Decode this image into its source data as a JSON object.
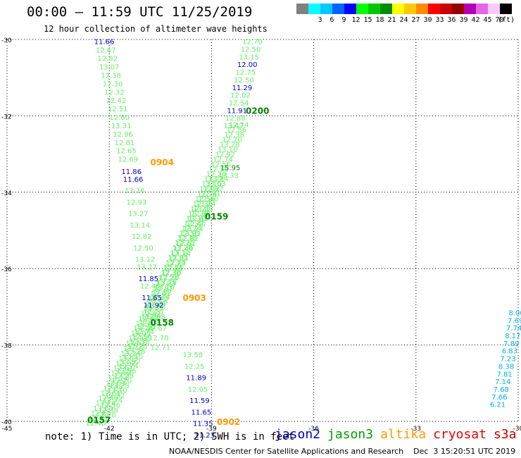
{
  "header": {
    "title": "00:00 – 11:59 UTC 11/25/2019",
    "subtitle": "12 hour collection of altimeter wave heights"
  },
  "legend": {
    "unit": "(ft)",
    "bins": [
      {
        "label": "",
        "color": "#808080"
      },
      {
        "label": "3",
        "color": "#00ffff"
      },
      {
        "label": "6",
        "color": "#00c8ff"
      },
      {
        "label": "9",
        "color": "#0064ff"
      },
      {
        "label": "12",
        "color": "#0000ff"
      },
      {
        "label": "15",
        "color": "#00ff00"
      },
      {
        "label": "18",
        "color": "#00c800"
      },
      {
        "label": "21",
        "color": "#008c00"
      },
      {
        "label": "24",
        "color": "#ffff00"
      },
      {
        "label": "27",
        "color": "#ffc800"
      },
      {
        "label": "30",
        "color": "#ff8c00"
      },
      {
        "label": "33",
        "color": "#ff0000"
      },
      {
        "label": "36",
        "color": "#c80000"
      },
      {
        "label": "39",
        "color": "#960000"
      },
      {
        "label": "42",
        "color": "#b400b4"
      },
      {
        "label": "45",
        "color": "#e664e6"
      },
      {
        "label": "70",
        "color": "#ffc8ff"
      },
      {
        "label": "",
        "color": "#000000"
      }
    ]
  },
  "footer": {
    "note": "note: 1) Time is in UTC; 2) SWH is in feet",
    "satellites": [
      {
        "name": "jason2",
        "color": "#0000c8"
      },
      {
        "name": "jason3",
        "color": "#00a000"
      },
      {
        "name": "altika",
        "color": "#ff9900"
      },
      {
        "name": "cryosat",
        "color": "#e00000"
      },
      {
        "name": "s3a",
        "color": "#c80000"
      }
    ],
    "credit": "NOAA/NESDIS Center for Satellite Applications and Research    Dec  3 15:20:51 UTC 2019"
  },
  "colors": {
    "swh_low": "#0000c8",
    "swh_mid": "#66ee66",
    "swh_s3a": "#00b0e0",
    "time_jason3": "#008800",
    "time_altika": "#ff9900"
  },
  "chart_data": {
    "type": "scatter",
    "title": "00:00 – 11:59 UTC 11/25/2019",
    "xlabel": "",
    "ylabel": "",
    "xlim": [
      -45,
      -30
    ],
    "ylim": [
      -40,
      -30
    ],
    "x_ticks": [
      -45,
      -42,
      -39,
      -36,
      -33,
      -30
    ],
    "y_ticks": [
      -30,
      -32,
      -34,
      -36,
      -38,
      -40
    ],
    "grid": "dotted",
    "tracks": [
      {
        "name": "jason2_altika_desc",
        "points": [
          [
            -42.15,
            -30.05,
            "11.66",
            "lo"
          ],
          [
            -42.1,
            -30.27,
            "12.67",
            "mid"
          ],
          [
            -42.05,
            -30.49,
            "12.82",
            "mid"
          ],
          [
            -42.0,
            -30.71,
            "13.07",
            "mid"
          ],
          [
            -41.95,
            -30.93,
            "12.38",
            "mid"
          ],
          [
            -41.9,
            -31.15,
            "12.30",
            "mid"
          ],
          [
            -41.85,
            -31.37,
            "12.32",
            "mid"
          ],
          [
            -41.8,
            -31.59,
            "12.42",
            "mid"
          ],
          [
            -41.75,
            -31.81,
            "12.51",
            "mid"
          ],
          [
            -41.7,
            -32.03,
            "12.60",
            "mid"
          ],
          [
            -41.65,
            -32.25,
            "13.31",
            "mid"
          ],
          [
            -41.6,
            -32.47,
            "12.96",
            "mid"
          ],
          [
            -41.55,
            -32.69,
            "12.81",
            "mid"
          ],
          [
            -41.5,
            -32.91,
            "12.65",
            "mid"
          ],
          [
            -41.45,
            -33.13,
            "12.69",
            "mid"
          ],
          [
            -41.35,
            -33.45,
            "11.86",
            "lo"
          ],
          [
            -41.3,
            -33.65,
            "11.66",
            "lo"
          ],
          [
            -41.25,
            -33.95,
            "13.16",
            "mid"
          ],
          [
            -41.2,
            -34.25,
            "12.93",
            "mid"
          ],
          [
            -41.15,
            -34.55,
            "13.27",
            "mid"
          ],
          [
            -41.1,
            -34.85,
            "13.14",
            "mid"
          ],
          [
            -41.05,
            -35.15,
            "12.82",
            "mid"
          ],
          [
            -41.0,
            -35.45,
            "12.50",
            "mid"
          ],
          [
            -40.95,
            -35.75,
            "13.12",
            "mid"
          ],
          [
            -40.9,
            -35.95,
            "13.27",
            "mid"
          ],
          [
            -40.85,
            -36.25,
            "11.85",
            "lo"
          ],
          [
            -40.8,
            -36.45,
            "12.45",
            "mid"
          ],
          [
            -40.75,
            -36.75,
            "11.65",
            "lo"
          ],
          [
            -40.7,
            -36.95,
            "11.92",
            "lo"
          ],
          [
            -40.65,
            -37.25,
            "12.68",
            "mid"
          ],
          [
            -40.6,
            -37.55,
            "12.67",
            "mid"
          ],
          [
            -40.55,
            -37.8,
            "12.70",
            "mid"
          ],
          [
            -40.5,
            -38.05,
            "12.71",
            "mid"
          ],
          [
            -39.55,
            -38.25,
            "13.58",
            "mid"
          ],
          [
            -39.5,
            -38.55,
            "12.25",
            "mid"
          ],
          [
            -39.45,
            -38.85,
            "11.89",
            "lo"
          ],
          [
            -39.4,
            -39.15,
            "12.05",
            "mid"
          ],
          [
            -39.35,
            -39.45,
            "11.59",
            "lo"
          ],
          [
            -39.3,
            -39.75,
            "11.65",
            "lo"
          ],
          [
            -39.25,
            -40.05,
            "11.35",
            "lo"
          ],
          [
            -39.2,
            -40.35,
            "11.23",
            "lo"
          ]
        ]
      },
      {
        "name": "jason3_asc",
        "points": [
          [
            -37.8,
            -30.05,
            "12.70",
            "mid"
          ],
          [
            -37.85,
            -30.25,
            "12.50",
            "mid"
          ],
          [
            -37.9,
            -30.45,
            "13.15",
            "mid"
          ],
          [
            -37.95,
            -30.65,
            "12.00",
            "lo"
          ],
          [
            -38.0,
            -30.85,
            "12.75",
            "mid"
          ],
          [
            -38.05,
            -31.05,
            "12.50",
            "mid"
          ],
          [
            -38.1,
            -31.25,
            "11.29",
            "lo"
          ],
          [
            -38.15,
            -31.45,
            "12.02",
            "mid"
          ],
          [
            -38.2,
            -31.65,
            "12.54",
            "mid"
          ],
          [
            -38.25,
            -31.85,
            "11.91",
            "lo"
          ],
          [
            -38.3,
            -32.05,
            "12.88",
            "mid"
          ],
          [
            -38.35,
            -32.25,
            "13.47",
            "mid"
          ],
          [
            -38.45,
            -33.35,
            "15.95",
            "j3"
          ],
          [
            -38.5,
            -33.55,
            "13.33",
            "mid"
          ],
          [
            -39.3,
            -39.25,
            "",
            "none"
          ]
        ]
      },
      {
        "name": "s3a_east",
        "points": [
          [
            -30.05,
            -37.15,
            "8.00",
            "s3a"
          ],
          [
            -30.08,
            -37.35,
            "7.69",
            "s3a"
          ],
          [
            -30.12,
            -37.55,
            "7.74",
            "s3a"
          ],
          [
            -30.16,
            -37.75,
            "8.17",
            "s3a"
          ],
          [
            -30.2,
            -37.95,
            "7.89",
            "s3a"
          ],
          [
            -30.25,
            -38.15,
            "6.83",
            "s3a"
          ],
          [
            -30.3,
            -38.35,
            "7.23",
            "s3a"
          ],
          [
            -30.35,
            -38.55,
            "8.38",
            "s3a"
          ],
          [
            -30.4,
            -38.75,
            "7.81",
            "s3a"
          ],
          [
            -30.45,
            -38.95,
            "7.14",
            "s3a"
          ],
          [
            -30.5,
            -39.15,
            "7.68",
            "s3a"
          ],
          [
            -30.55,
            -39.35,
            "7.66",
            "s3a"
          ],
          [
            -30.6,
            -39.55,
            "6.21",
            "s3a"
          ]
        ]
      }
    ],
    "time_labels": [
      {
        "text": "0200",
        "x": -37.65,
        "y": -31.85,
        "sat": "jason3"
      },
      {
        "text": "0904",
        "x": -40.45,
        "y": -33.2,
        "sat": "altika"
      },
      {
        "text": "0159",
        "x": -38.85,
        "y": -34.62,
        "sat": "jason3"
      },
      {
        "text": "0903",
        "x": -39.5,
        "y": -36.75,
        "sat": "altika"
      },
      {
        "text": "0158",
        "x": -40.45,
        "y": -37.4,
        "sat": "jason3"
      },
      {
        "text": "0902",
        "x": -38.5,
        "y": -40.0,
        "sat": "altika"
      },
      {
        "text": "0157",
        "x": -42.3,
        "y": -39.95,
        "sat": "jason3"
      }
    ]
  }
}
